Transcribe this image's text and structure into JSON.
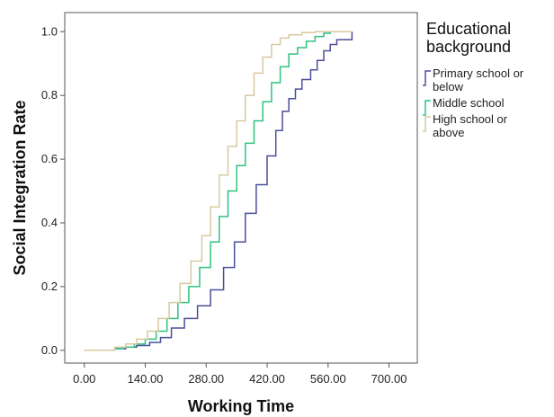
{
  "chart_data": {
    "type": "line",
    "step": true,
    "xlabel": "Working Time",
    "ylabel": "Social Integration Rate",
    "xlim": [
      -45,
      765
    ],
    "ylim": [
      -0.04,
      1.06
    ],
    "x_ticks": [
      0,
      140,
      280,
      420,
      560,
      700
    ],
    "x_tick_labels": [
      "0.00",
      "140.00",
      "280.00",
      "420.00",
      "560.00",
      "700.00"
    ],
    "y_ticks": [
      0.0,
      0.2,
      0.4,
      0.6,
      0.8,
      1.0
    ],
    "y_tick_labels": [
      "0.0",
      "0.2",
      "0.4",
      "0.6",
      "0.8",
      "1.0"
    ],
    "grid": false,
    "legend": {
      "title": "Educational background",
      "title_lines": [
        "Educational",
        "background"
      ],
      "placement": "right, outside plot"
    },
    "series": [
      {
        "name": "Primary school or below",
        "label_lines": [
          "Primary school or",
          "below"
        ],
        "color": "#4b4f9a",
        "points": [
          [
            0,
            0
          ],
          [
            45,
            0
          ],
          [
            70,
            0.005
          ],
          [
            95,
            0.01
          ],
          [
            120,
            0.015
          ],
          [
            150,
            0.025
          ],
          [
            175,
            0.04
          ],
          [
            200,
            0.07
          ],
          [
            230,
            0.1
          ],
          [
            260,
            0.14
          ],
          [
            290,
            0.19
          ],
          [
            320,
            0.26
          ],
          [
            345,
            0.34
          ],
          [
            370,
            0.43
          ],
          [
            395,
            0.52
          ],
          [
            420,
            0.61
          ],
          [
            440,
            0.69
          ],
          [
            455,
            0.75
          ],
          [
            470,
            0.79
          ],
          [
            485,
            0.82
          ],
          [
            500,
            0.85
          ],
          [
            520,
            0.88
          ],
          [
            535,
            0.91
          ],
          [
            550,
            0.94
          ],
          [
            565,
            0.96
          ],
          [
            580,
            0.975
          ],
          [
            615,
            0.975
          ],
          [
            615,
            1.0
          ]
        ]
      },
      {
        "name": "Middle school",
        "label_lines": [
          "Middle school"
        ],
        "color": "#2ec27e",
        "points": [
          [
            0,
            0
          ],
          [
            45,
            0
          ],
          [
            70,
            0.005
          ],
          [
            90,
            0.01
          ],
          [
            115,
            0.02
          ],
          [
            140,
            0.035
          ],
          [
            165,
            0.06
          ],
          [
            190,
            0.1
          ],
          [
            215,
            0.15
          ],
          [
            240,
            0.2
          ],
          [
            265,
            0.26
          ],
          [
            290,
            0.34
          ],
          [
            310,
            0.42
          ],
          [
            330,
            0.5
          ],
          [
            350,
            0.58
          ],
          [
            370,
            0.65
          ],
          [
            390,
            0.72
          ],
          [
            410,
            0.78
          ],
          [
            430,
            0.84
          ],
          [
            450,
            0.89
          ],
          [
            470,
            0.93
          ],
          [
            490,
            0.95
          ],
          [
            510,
            0.97
          ],
          [
            530,
            0.985
          ],
          [
            550,
            0.995
          ],
          [
            565,
            1.0
          ],
          [
            615,
            1.0
          ]
        ]
      },
      {
        "name": "High school or above",
        "label_lines": [
          "High school or",
          "above"
        ],
        "color": "#d8c9a0",
        "points": [
          [
            0,
            0
          ],
          [
            45,
            0
          ],
          [
            70,
            0.01
          ],
          [
            95,
            0.02
          ],
          [
            120,
            0.035
          ],
          [
            145,
            0.06
          ],
          [
            170,
            0.1
          ],
          [
            195,
            0.15
          ],
          [
            220,
            0.21
          ],
          [
            245,
            0.28
          ],
          [
            270,
            0.36
          ],
          [
            290,
            0.45
          ],
          [
            310,
            0.55
          ],
          [
            330,
            0.64
          ],
          [
            350,
            0.72
          ],
          [
            370,
            0.8
          ],
          [
            390,
            0.87
          ],
          [
            410,
            0.92
          ],
          [
            430,
            0.96
          ],
          [
            450,
            0.98
          ],
          [
            470,
            0.99
          ],
          [
            500,
            0.997
          ],
          [
            530,
            1.0
          ],
          [
            615,
            1.0
          ]
        ]
      }
    ]
  }
}
